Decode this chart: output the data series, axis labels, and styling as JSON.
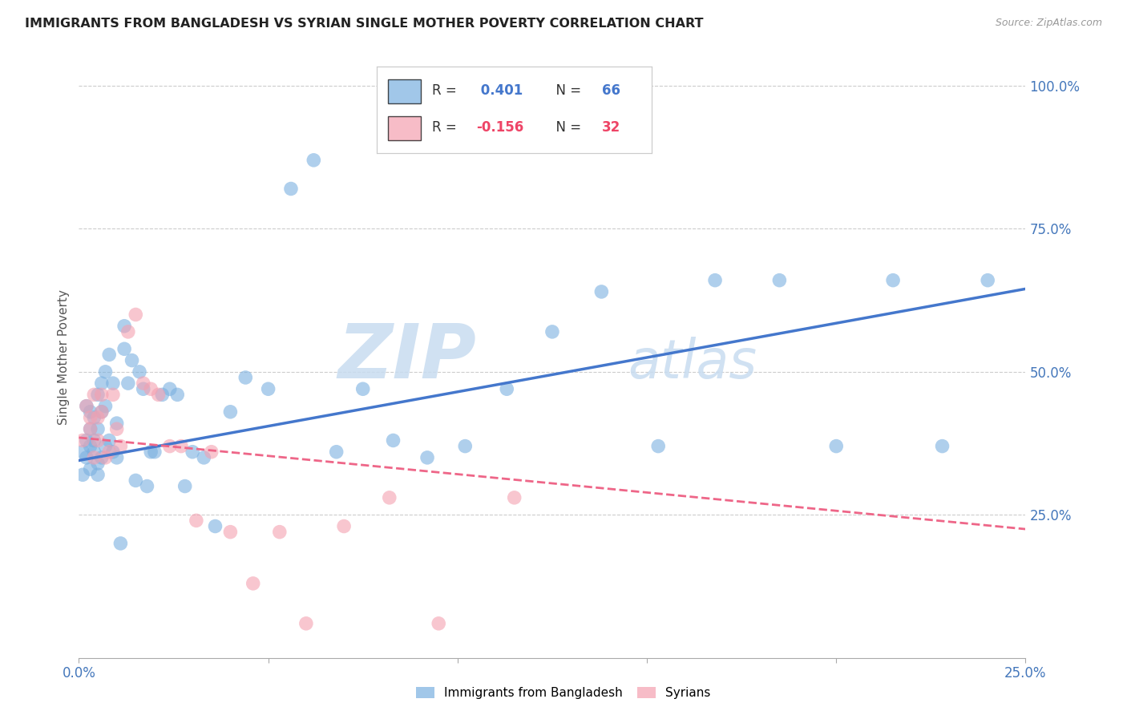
{
  "title": "IMMIGRANTS FROM BANGLADESH VS SYRIAN SINGLE MOTHER POVERTY CORRELATION CHART",
  "source": "Source: ZipAtlas.com",
  "ylabel": "Single Mother Poverty",
  "ylabel_right_labels": [
    "100.0%",
    "75.0%",
    "50.0%",
    "25.0%"
  ],
  "ylabel_right_values": [
    1.0,
    0.75,
    0.5,
    0.25
  ],
  "xmin": 0.0,
  "xmax": 0.25,
  "ymin": 0.0,
  "ymax": 1.05,
  "legend1_r": "0.401",
  "legend1_n": "66",
  "legend2_r": "-0.156",
  "legend2_n": "32",
  "color_bangladesh": "#7AB0E0",
  "color_syrian": "#F4A0B0",
  "color_line_bangladesh": "#4477CC",
  "color_line_syrian": "#EE6688",
  "watermark_zip": "ZIP",
  "watermark_atlas": "atlas",
  "bangladesh_x": [
    0.001,
    0.001,
    0.002,
    0.002,
    0.002,
    0.003,
    0.003,
    0.003,
    0.003,
    0.004,
    0.004,
    0.004,
    0.005,
    0.005,
    0.005,
    0.005,
    0.006,
    0.006,
    0.006,
    0.007,
    0.007,
    0.007,
    0.008,
    0.008,
    0.009,
    0.009,
    0.01,
    0.01,
    0.011,
    0.012,
    0.012,
    0.013,
    0.014,
    0.015,
    0.016,
    0.017,
    0.018,
    0.019,
    0.02,
    0.022,
    0.024,
    0.026,
    0.028,
    0.03,
    0.033,
    0.036,
    0.04,
    0.044,
    0.05,
    0.056,
    0.062,
    0.068,
    0.075,
    0.083,
    0.092,
    0.102,
    0.113,
    0.125,
    0.138,
    0.153,
    0.168,
    0.185,
    0.2,
    0.215,
    0.228,
    0.24
  ],
  "bangladesh_y": [
    0.36,
    0.32,
    0.38,
    0.44,
    0.35,
    0.33,
    0.4,
    0.37,
    0.43,
    0.36,
    0.42,
    0.38,
    0.34,
    0.46,
    0.32,
    0.4,
    0.35,
    0.48,
    0.43,
    0.37,
    0.44,
    0.5,
    0.38,
    0.53,
    0.36,
    0.48,
    0.35,
    0.41,
    0.2,
    0.54,
    0.58,
    0.48,
    0.52,
    0.31,
    0.5,
    0.47,
    0.3,
    0.36,
    0.36,
    0.46,
    0.47,
    0.46,
    0.3,
    0.36,
    0.35,
    0.23,
    0.43,
    0.49,
    0.47,
    0.82,
    0.87,
    0.36,
    0.47,
    0.38,
    0.35,
    0.37,
    0.47,
    0.57,
    0.64,
    0.37,
    0.66,
    0.66,
    0.37,
    0.66,
    0.37,
    0.66
  ],
  "syrian_x": [
    0.001,
    0.002,
    0.003,
    0.003,
    0.004,
    0.004,
    0.005,
    0.005,
    0.006,
    0.006,
    0.007,
    0.008,
    0.009,
    0.01,
    0.011,
    0.013,
    0.015,
    0.017,
    0.019,
    0.021,
    0.024,
    0.027,
    0.031,
    0.035,
    0.04,
    0.046,
    0.053,
    0.06,
    0.07,
    0.082,
    0.095,
    0.115
  ],
  "syrian_y": [
    0.38,
    0.44,
    0.4,
    0.42,
    0.35,
    0.46,
    0.42,
    0.38,
    0.43,
    0.46,
    0.35,
    0.36,
    0.46,
    0.4,
    0.37,
    0.57,
    0.6,
    0.48,
    0.47,
    0.46,
    0.37,
    0.37,
    0.24,
    0.36,
    0.22,
    0.13,
    0.22,
    0.06,
    0.23,
    0.28,
    0.06,
    0.28
  ],
  "line_b_x0": 0.0,
  "line_b_y0": 0.345,
  "line_b_x1": 0.25,
  "line_b_y1": 0.645,
  "line_s_x0": 0.0,
  "line_s_y0": 0.385,
  "line_s_x1": 0.25,
  "line_s_y1": 0.225,
  "gridline_color": "#CCCCCC",
  "background_color": "#FFFFFF"
}
